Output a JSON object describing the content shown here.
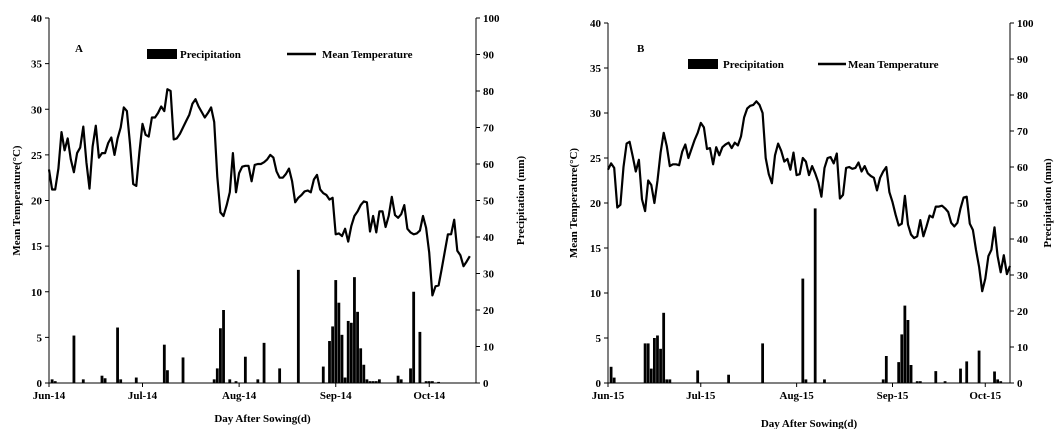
{
  "chart_data": [
    {
      "panel": "A",
      "type": "bar+line",
      "legend": [
        "Precipitation",
        "Mean Temperature"
      ],
      "legend_placement": "top-center",
      "grid": false,
      "xlabel": "Day After Sowing(d)",
      "ylabel_left": "Mean Temperature(°C)",
      "ylabel_right": "Precipitation (mm)",
      "ylim_left": [
        0,
        40
      ],
      "ylim_right": [
        0,
        100
      ],
      "yticks_left": [
        "0",
        "5",
        "10",
        "15",
        "20",
        "25",
        "30",
        "35",
        "40"
      ],
      "yticks_right": [
        "0",
        "10",
        "20",
        "30",
        "40",
        "50",
        "60",
        "70",
        "80",
        "90",
        "100"
      ],
      "xticks": [
        "Jun-14",
        "Jul-14",
        "Aug-14",
        "Sep-14",
        "Oct-14"
      ],
      "x_tick_days": [
        0,
        30,
        61,
        92,
        122
      ],
      "x_range_days": [
        0,
        137
      ],
      "temperature_days": [
        0,
        1,
        2,
        3,
        4,
        5,
        6,
        7,
        8,
        9,
        10,
        11,
        12,
        13,
        14,
        15,
        16,
        17,
        18,
        19,
        20,
        21,
        22,
        23,
        24,
        25,
        26,
        27,
        28,
        29,
        30,
        31,
        32,
        33,
        34,
        35,
        36,
        37,
        38,
        39,
        40,
        41,
        42,
        43,
        44,
        45,
        46,
        47,
        48,
        49,
        50,
        51,
        52,
        53,
        54,
        55,
        56,
        57,
        58,
        59,
        60,
        61,
        62,
        63,
        64,
        65,
        66,
        67,
        68,
        69,
        70,
        71,
        72,
        73,
        74,
        75,
        76,
        77,
        78,
        79,
        80,
        81,
        82,
        83,
        84,
        85,
        86,
        87,
        88,
        89,
        90,
        91,
        92,
        93,
        94,
        95,
        96,
        97,
        98,
        99,
        100,
        101,
        102,
        103,
        104,
        105,
        106,
        107,
        108,
        109,
        110,
        111,
        112,
        113,
        114,
        115,
        116,
        117,
        118,
        119,
        120,
        121,
        122,
        123,
        124,
        125,
        126,
        127,
        128,
        129,
        130,
        131,
        132,
        133,
        134,
        135,
        136,
        137
      ],
      "temperature": [
        23.4,
        21.2,
        21.2,
        23.5,
        27.5,
        25.5,
        26.8,
        24.5,
        23.1,
        25.2,
        25.8,
        28.1,
        24.2,
        21.3,
        25.9,
        28.2,
        24.7,
        25.2,
        25.2,
        26.3,
        26.9,
        25.0,
        26.8,
        28.0,
        30.2,
        29.8,
        26.2,
        21.8,
        21.6,
        25.3,
        28.4,
        27.2,
        27.0,
        29.1,
        29.1,
        29.6,
        30.3,
        29.8,
        32.2,
        32.0,
        26.7,
        26.8,
        27.3,
        28.0,
        28.7,
        29.4,
        30.6,
        31.1,
        30.3,
        29.7,
        29.1,
        29.6,
        30.2,
        28.6,
        22.6,
        18.7,
        18.3,
        19.5,
        20.9,
        25.2,
        20.9,
        23.0,
        23.7,
        23.8,
        23.8,
        22.1,
        23.9,
        24.0,
        24.0,
        24.2,
        24.5,
        25.0,
        24.7,
        23.2,
        22.5,
        22.5,
        22.9,
        23.5,
        22.1,
        19.8,
        20.3,
        20.6,
        21.0,
        21.1,
        20.9,
        22.3,
        22.8,
        21.2,
        20.8,
        20.6,
        20.1,
        20.3,
        16.3,
        16.4,
        16.1,
        16.9,
        15.5,
        17.2,
        18.3,
        18.8,
        19.5,
        19.9,
        19.8,
        16.6,
        18.3,
        16.5,
        18.8,
        18.8,
        17.1,
        18.3,
        20.4,
        18.4,
        18.1,
        18.5,
        19.5,
        16.9,
        16.5,
        16.3,
        16.4,
        16.7,
        18.3,
        17.0,
        14.3,
        9.6,
        10.6,
        10.7,
        12.5,
        14.4,
        16.3,
        16.3,
        17.9,
        14.5,
        14.0,
        12.8,
        13.3,
        13.9
      ],
      "precip_days": [
        1,
        2,
        8,
        11,
        17,
        18,
        22,
        23,
        28,
        37,
        38,
        43,
        53,
        54,
        55,
        56,
        58,
        60,
        63,
        67,
        69,
        74,
        80,
        88,
        90,
        91,
        92,
        93,
        94,
        95,
        96,
        97,
        98,
        99,
        100,
        101,
        102,
        103,
        104,
        105,
        106,
        112,
        113,
        116,
        117,
        119,
        121,
        122,
        123,
        125
      ],
      "precipitation": [
        1.0,
        0.5,
        13.0,
        1.0,
        2.0,
        1.3,
        15.2,
        1.0,
        1.5,
        10.5,
        3.5,
        7.0,
        1.0,
        4.0,
        15.0,
        20.0,
        1.0,
        0.5,
        7.2,
        1.0,
        11.0,
        4.0,
        31.0,
        4.5,
        11.5,
        15.5,
        28.2,
        22.0,
        13.2,
        1.5,
        17.0,
        16.5,
        29.0,
        19.5,
        9.5,
        5.0,
        1.0,
        0.5,
        0.5,
        0.5,
        1.0,
        2.0,
        1.0,
        4.0,
        25.0,
        14.0,
        0.5,
        0.5,
        0.5,
        0.3
      ]
    },
    {
      "panel": "B",
      "type": "bar+line",
      "legend": [
        "Precipitation",
        "Mean Temperature"
      ],
      "legend_placement": "top-center",
      "grid": false,
      "xlabel": "Day After Sowing(d)",
      "ylabel_left": "Mean Temperature(°C)",
      "ylabel_right": "Precipitation (mm)",
      "ylim_left": [
        0,
        40
      ],
      "ylim_right": [
        0,
        100
      ],
      "yticks_left": [
        "0",
        "5",
        "10",
        "15",
        "20",
        "25",
        "30",
        "35",
        "40"
      ],
      "yticks_right": [
        "0",
        "10",
        "20",
        "30",
        "40",
        "50",
        "60",
        "70",
        "80",
        "90",
        "100"
      ],
      "xticks": [
        "Jun-15",
        "Jul-15",
        "Aug-15",
        "Sep-15",
        "Oct-15"
      ],
      "x_tick_days": [
        0,
        30,
        61,
        92,
        122
      ],
      "x_range_days": [
        0,
        130
      ],
      "temperature_days": [
        0,
        1,
        2,
        3,
        4,
        5,
        6,
        7,
        8,
        9,
        10,
        11,
        12,
        13,
        14,
        15,
        16,
        17,
        18,
        19,
        20,
        21,
        22,
        23,
        24,
        25,
        26,
        27,
        28,
        29,
        30,
        31,
        32,
        33,
        34,
        35,
        36,
        37,
        38,
        39,
        40,
        41,
        42,
        43,
        44,
        45,
        46,
        47,
        48,
        49,
        50,
        51,
        52,
        53,
        54,
        55,
        56,
        57,
        58,
        59,
        60,
        61,
        62,
        63,
        64,
        65,
        66,
        67,
        68,
        69,
        70,
        71,
        72,
        73,
        74,
        75,
        76,
        77,
        78,
        79,
        80,
        81,
        82,
        83,
        84,
        85,
        86,
        87,
        88,
        89,
        90,
        91,
        92,
        93,
        94,
        95,
        96,
        97,
        98,
        99,
        100,
        101,
        102,
        103,
        104,
        105,
        106,
        107,
        108,
        109,
        110,
        111,
        112,
        113,
        114,
        115,
        116,
        117,
        118,
        119,
        120,
        121,
        122,
        123,
        124,
        125,
        126,
        127,
        128,
        129,
        130
      ],
      "temperature": [
        23.7,
        24.4,
        23.9,
        19.5,
        19.8,
        24.0,
        26.6,
        26.8,
        25.2,
        23.5,
        24.8,
        20.4,
        19.1,
        22.5,
        22.0,
        20.0,
        22.5,
        25.6,
        27.8,
        26.3,
        24.1,
        24.3,
        24.3,
        24.2,
        25.7,
        26.5,
        25.0,
        26.0,
        27.0,
        27.8,
        28.9,
        28.4,
        26.0,
        26.1,
        24.3,
        26.2,
        25.3,
        26.2,
        26.5,
        26.7,
        26.1,
        26.7,
        26.4,
        27.4,
        29.5,
        30.5,
        30.8,
        30.9,
        31.3,
        30.9,
        30.0,
        25.0,
        23.2,
        22.2,
        25.3,
        26.6,
        25.8,
        24.6,
        24.9,
        23.7,
        25.6,
        23.1,
        23.2,
        25.0,
        24.6,
        23.1,
        24.1,
        23.3,
        22.3,
        20.7,
        23.9,
        25.0,
        25.1,
        24.4,
        25.5,
        20.5,
        20.9,
        23.9,
        24.0,
        23.8,
        23.9,
        24.5,
        23.5,
        24.1,
        23.3,
        23.0,
        22.8,
        21.4,
        22.8,
        23.5,
        24.0,
        21.2,
        20.1,
        18.7,
        17.5,
        17.7,
        20.8,
        17.6,
        16.5,
        16.1,
        16.3,
        18.1,
        16.3,
        17.4,
        18.6,
        18.4,
        19.6,
        19.6,
        19.7,
        19.4,
        19.0,
        17.8,
        17.4,
        17.8,
        19.4,
        20.6,
        20.7,
        17.7,
        17.0,
        14.8,
        12.9,
        10.2,
        11.6,
        14.1,
        14.8,
        17.3,
        14.1,
        12.3,
        14.2,
        12.1,
        13.0,
        15.2,
        15.4
      ],
      "precip_days": [
        1,
        2,
        12,
        13,
        14,
        15,
        16,
        17,
        18,
        19,
        20,
        29,
        39,
        50,
        63,
        64,
        67,
        70,
        89,
        90,
        94,
        95,
        96,
        97,
        98,
        100,
        101,
        106,
        109,
        114,
        116,
        120,
        125,
        126,
        127
      ],
      "precipitation": [
        4.5,
        1.5,
        11.0,
        11.0,
        4.0,
        12.5,
        13.2,
        9.5,
        19.5,
        1.0,
        1.0,
        3.5,
        2.3,
        11.0,
        29.0,
        1.0,
        48.5,
        1.0,
        1.0,
        7.5,
        5.8,
        13.5,
        21.5,
        17.5,
        5.0,
        0.5,
        0.5,
        3.3,
        0.5,
        4.0,
        6.0,
        9.0,
        3.2,
        1.0,
        0.5
      ]
    }
  ]
}
